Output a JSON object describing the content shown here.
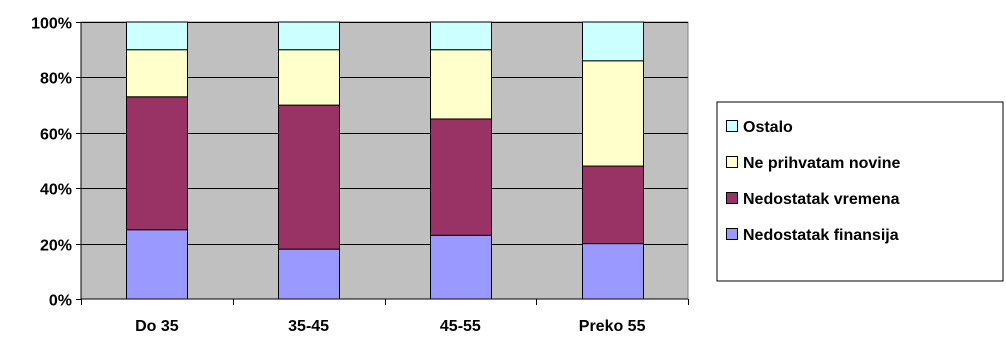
{
  "chart_data": {
    "type": "bar",
    "stacked": true,
    "percent": true,
    "title": "",
    "xlabel": "",
    "ylabel": "",
    "categories": [
      "Do 35",
      "35-45",
      "45-55",
      "Preko 55"
    ],
    "series": [
      {
        "name": "Nedostatak finansija",
        "color": "#9999ff",
        "values": [
          25,
          18,
          23,
          20
        ]
      },
      {
        "name": "Nedostatak vremena",
        "color": "#993366",
        "values": [
          48,
          52,
          42,
          28
        ]
      },
      {
        "name": "Ne prihvatam novine",
        "color": "#ffffcc",
        "values": [
          17,
          20,
          25,
          38
        ]
      },
      {
        "name": "Ostalo",
        "color": "#ccffff",
        "values": [
          10,
          10,
          10,
          14
        ]
      }
    ],
    "ylim": [
      0,
      100
    ],
    "yticks": [
      "0%",
      "20%",
      "40%",
      "60%",
      "80%",
      "100%"
    ],
    "grid": true,
    "plot_background": "#c0c0c0",
    "legend_position": "right",
    "legend_entries": [
      "Ostalo",
      "Ne prihvatam novine",
      "Nedostatak vremena",
      "Nedostatak finansija"
    ]
  }
}
